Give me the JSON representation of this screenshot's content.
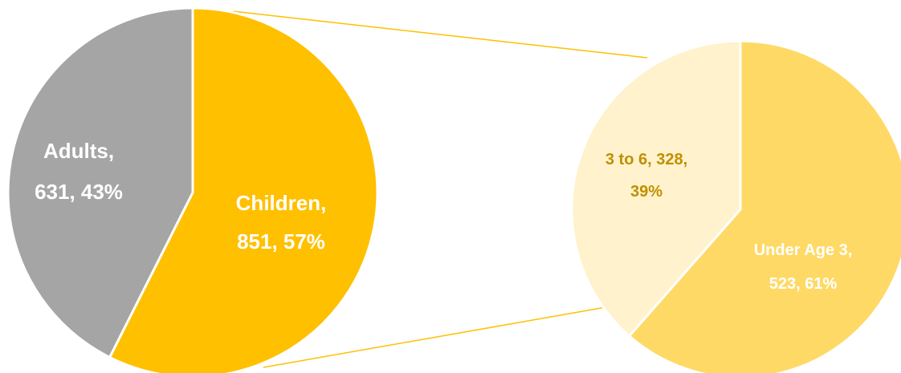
{
  "chart_data": [
    {
      "type": "pie",
      "slices": [
        {
          "label": "Children",
          "value": 851,
          "percent": "57%",
          "color": "#FFC000",
          "text_color": "#FFFFFF"
        },
        {
          "label": "Adults",
          "value": 631,
          "percent": "43%",
          "color": "#A5A5A5",
          "text_color": "#FFFFFF"
        }
      ]
    },
    {
      "type": "pie",
      "breakdown_of": "Children",
      "slices": [
        {
          "label": "Under Age 3",
          "value": 523,
          "percent": "61%",
          "color": "#FFD966",
          "text_color": "#FFFFFF"
        },
        {
          "label": "3 to 6",
          "value": 328,
          "percent": "39%",
          "color": "#FFF2CC",
          "text_color": "#BF9000"
        }
      ]
    }
  ],
  "labels": {
    "children_line1": "Children,",
    "children_line2": "851, 57%",
    "adults_line1": "Adults,",
    "adults_line2": "631, 43%",
    "under3_line1": "Under Age 3,",
    "under3_line2": "523, 61%",
    "three_to_six_line1": "3 to 6, 328,",
    "three_to_six_line2": "39%"
  },
  "connector_color": "#FFC000"
}
